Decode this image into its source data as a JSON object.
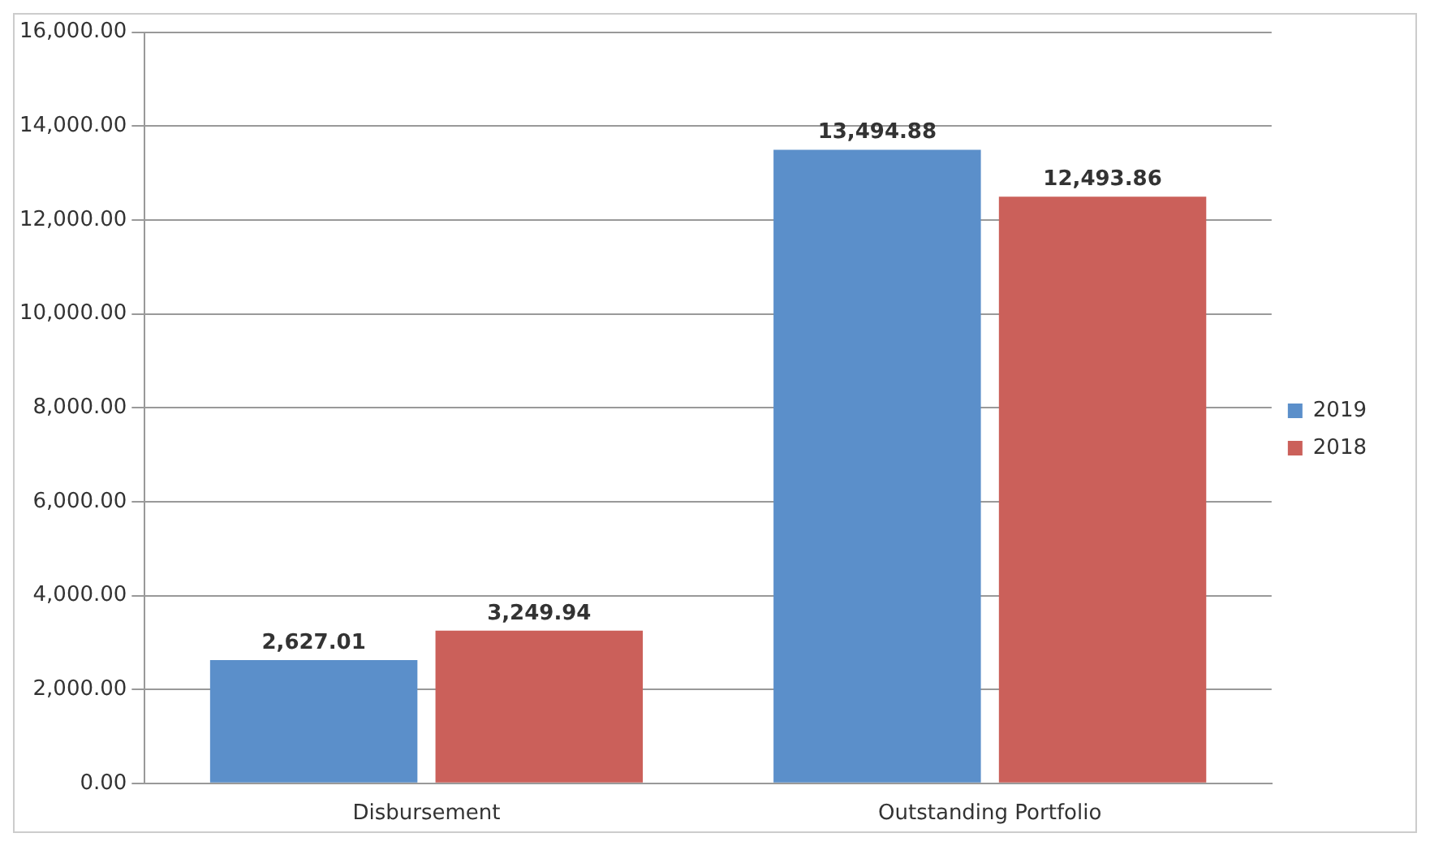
{
  "chart_data": {
    "type": "bar",
    "categories": [
      "Disbursement",
      "Outstanding Portfolio"
    ],
    "series": [
      {
        "name": "2019",
        "color": "#5b8fca",
        "values": [
          2627.01,
          13494.88
        ],
        "value_labels": [
          "2,627.01",
          "13,494.88"
        ]
      },
      {
        "name": "2018",
        "color": "#cb605a",
        "values": [
          3249.94,
          12493.86
        ],
        "value_labels": [
          "3,249.94",
          "12,493.86"
        ]
      }
    ],
    "ylim": [
      0,
      16000
    ],
    "yticks": [
      {
        "value": 0,
        "label": "0.00"
      },
      {
        "value": 2000,
        "label": "2,000.00"
      },
      {
        "value": 4000,
        "label": "4,000.00"
      },
      {
        "value": 6000,
        "label": "6,000.00"
      },
      {
        "value": 8000,
        "label": "8,000.00"
      },
      {
        "value": 10000,
        "label": "10,000.00"
      },
      {
        "value": 12000,
        "label": "12,000.00"
      },
      {
        "value": 14000,
        "label": "14,000.00"
      },
      {
        "value": 16000,
        "label": "16,000.00"
      }
    ],
    "grid": "y",
    "legend": "right"
  }
}
